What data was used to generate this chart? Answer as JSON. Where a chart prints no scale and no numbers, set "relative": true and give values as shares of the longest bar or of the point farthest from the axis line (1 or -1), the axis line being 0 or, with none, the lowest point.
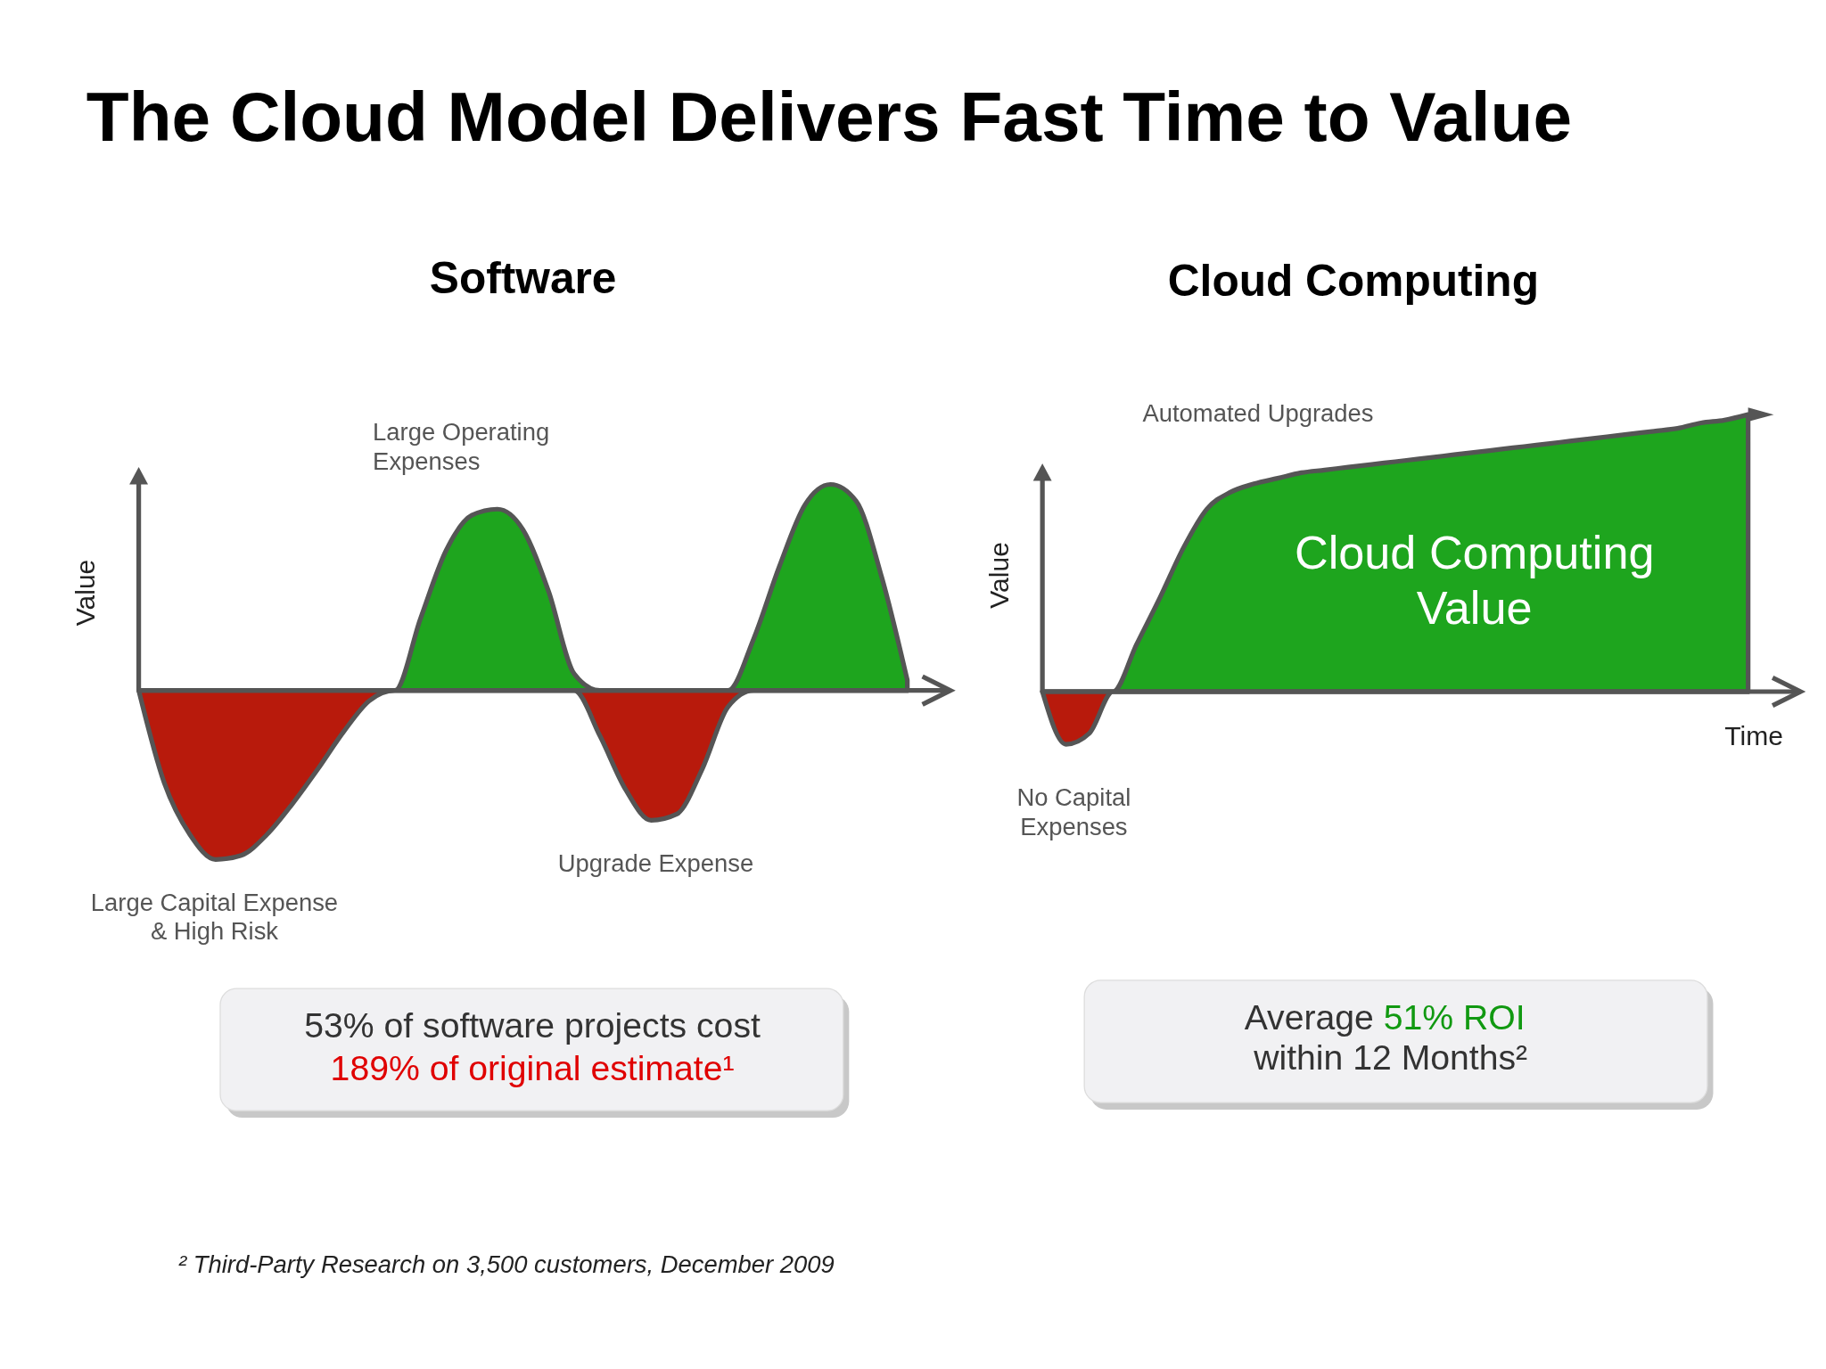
{
  "chart_data": [
    {
      "type": "area",
      "title": "Software",
      "ylabel": "Value",
      "relative": true,
      "categories": [
        null,
        null,
        null,
        null,
        null,
        null,
        null,
        null,
        null,
        null,
        null,
        null,
        null,
        null,
        null,
        null,
        null,
        null,
        null,
        null,
        null,
        null,
        null,
        null,
        null,
        null,
        null,
        null,
        null,
        null,
        null
      ],
      "series": [
        {
          "color": "#1ea51e",
          "values": [
            0,
            0,
            0,
            0,
            0,
            0,
            0,
            0,
            0,
            0,
            0,
            0.35,
            0.68,
            0.85,
            0.88,
            0.78,
            0.48,
            0.08,
            0,
            0,
            0,
            0,
            0,
            0,
            0.25,
            0.6,
            0.9,
            1.0,
            0.92,
            0.55,
            0.05
          ]
        },
        {
          "color": "#b81a0c",
          "values": [
            0,
            -0.45,
            -0.7,
            -0.82,
            -0.8,
            -0.7,
            -0.55,
            -0.38,
            -0.2,
            -0.05,
            0,
            0,
            0,
            0,
            0,
            0,
            0,
            0,
            -0.22,
            -0.48,
            -0.63,
            -0.6,
            -0.38,
            -0.08,
            0,
            0,
            0,
            0,
            0,
            0,
            0
          ]
        }
      ],
      "annotations": [
        "The Cloud Model Delivers Fast Time to Value",
        "Large Operating\nExpenses",
        "Large Capital Expense\n& High Risk",
        "Upgrade Expense",
        "53% of software projects cost",
        "189% of original estimate¹"
      ]
    },
    {
      "type": "area",
      "title": "Cloud Computing",
      "xlabel": "Time",
      "ylabel": "Value",
      "relative": true,
      "categories": [
        null,
        null,
        null,
        null,
        null,
        null,
        null,
        null,
        null,
        null,
        null,
        null,
        null,
        null,
        null,
        null,
        null,
        null,
        null,
        null,
        null,
        null,
        null,
        null,
        null,
        null,
        null,
        null,
        null,
        null,
        null
      ],
      "series": [
        {
          "color": "#1ea51e",
          "values": [
            0,
            0,
            0,
            0,
            0.17,
            0.34,
            0.52,
            0.66,
            0.72,
            0.75,
            0.77,
            0.79,
            0.8,
            0.81,
            0.82,
            0.83,
            0.84,
            0.85,
            0.86,
            0.87,
            0.88,
            0.89,
            0.9,
            0.91,
            0.92,
            0.93,
            0.94,
            0.95,
            0.97,
            0.98,
            1.0
          ]
        },
        {
          "color": "#b81a0c",
          "values": [
            0,
            -0.19,
            -0.15,
            0,
            0,
            0,
            0,
            0,
            0,
            0,
            0,
            0,
            0,
            0,
            0,
            0,
            0,
            0,
            0,
            0,
            0,
            0,
            0,
            0,
            0,
            0,
            0,
            0,
            0,
            0,
            0
          ]
        }
      ],
      "annotations": [
        "Automated Upgrades",
        "Cloud Computing\nValue",
        "No Capital\nExpenses",
        "Average",
        "51% ROI",
        "within 12 Months²",
        "² Third-Party Research on 3,500 customers, December 2009"
      ]
    }
  ]
}
